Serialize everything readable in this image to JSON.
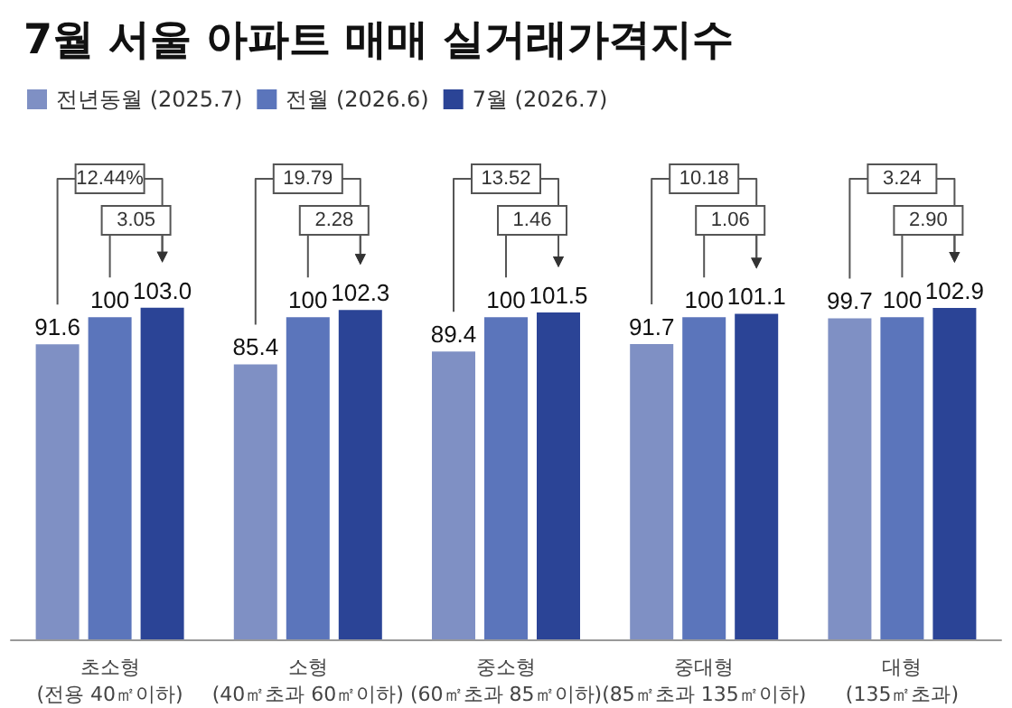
{
  "chart_data": {
    "type": "bar",
    "title": "7월 서울 아파트 매매 실거래가격지수",
    "categories": [
      "초소형\n(전용 40㎡이하)",
      "소형\n(40㎡초과 60㎡이하)",
      "중소형\n(60㎡초과 85㎡이하)",
      "중대형\n(85㎡초과 135㎡이하)",
      "대형\n(135㎡초과)"
    ],
    "series": [
      {
        "name": "전년동월 (2025.7)",
        "color": "#7f90c4",
        "values": [
          91.6,
          85.4,
          89.4,
          91.7,
          99.7
        ],
        "value_labels": [
          "91.6",
          "85.4",
          "89.4",
          "91.7",
          "99.7"
        ]
      },
      {
        "name": "전월 (2026.6)",
        "color": "#5b75bb",
        "values": [
          100,
          100,
          100,
          100,
          100
        ],
        "value_labels": [
          "100",
          "100",
          "100",
          "100",
          "100"
        ]
      },
      {
        "name": "7월 (2026.7)",
        "color": "#2b4496",
        "values": [
          103.0,
          102.3,
          101.5,
          101.1,
          102.9
        ],
        "value_labels": [
          "103.0",
          "102.3",
          "101.5",
          "101.1",
          "102.9"
        ]
      }
    ],
    "annotations": [
      "12.44%",
      "3.05",
      "19.79",
      "2.28",
      "13.52",
      "1.46",
      "10.18",
      "1.06",
      "3.24",
      "2.90"
    ],
    "legend": "top left",
    "grid": false
  }
}
